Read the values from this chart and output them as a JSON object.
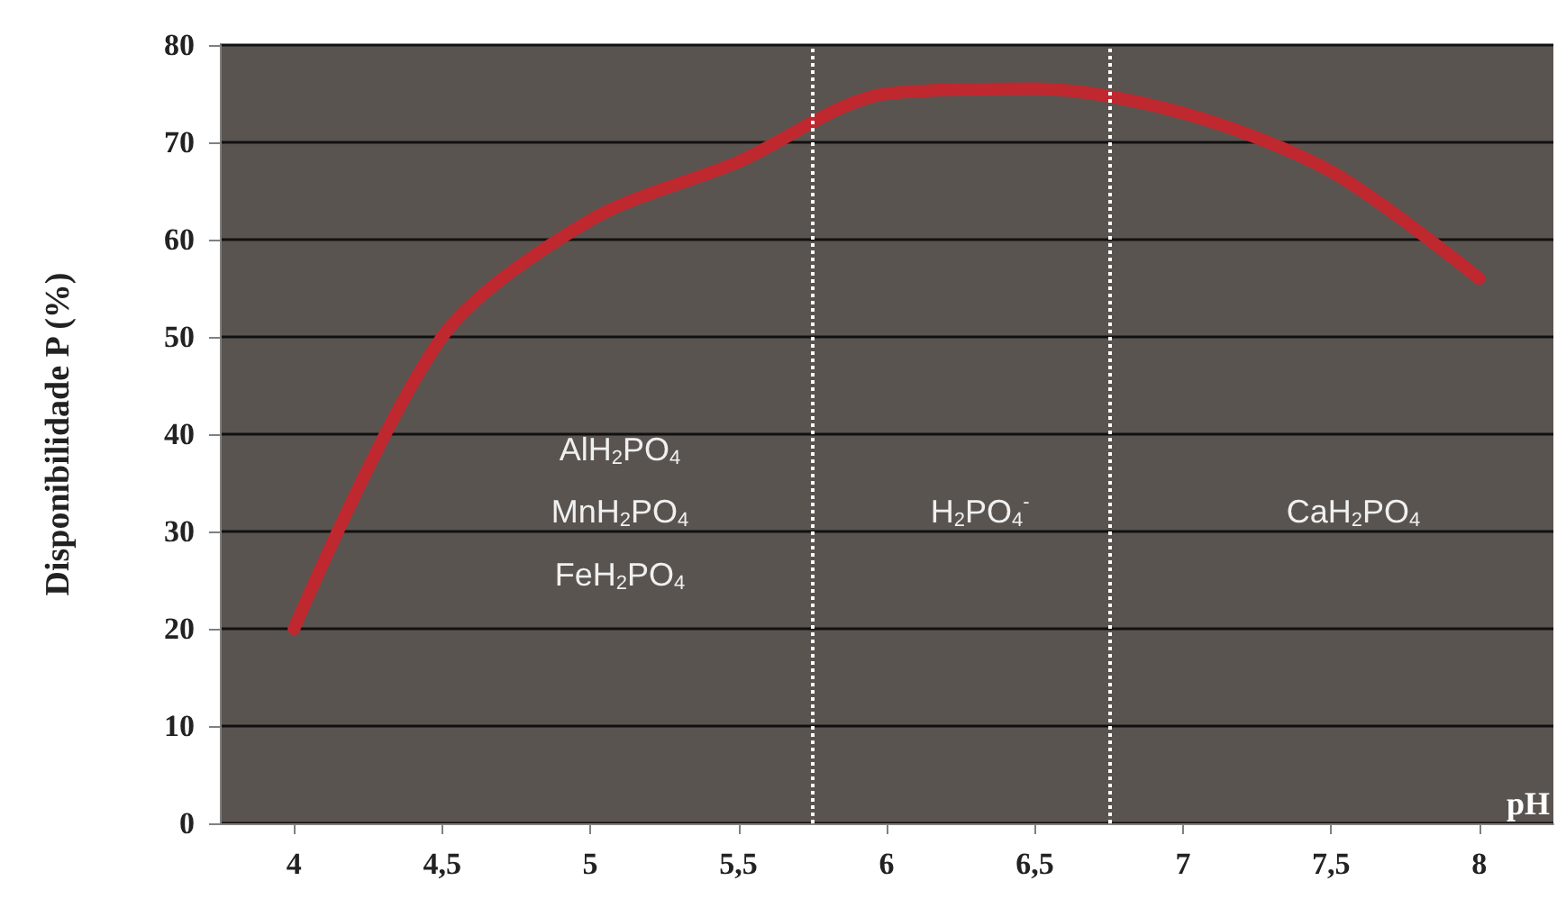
{
  "chart_data": {
    "type": "line",
    "ylabel": "Disponibilidade P (%)",
    "xlabel": "pH",
    "x": [
      4,
      4.5,
      5,
      5.5,
      6,
      6.5,
      7,
      7.5,
      8
    ],
    "series": [
      {
        "color": "#c0282f",
        "values": [
          20,
          50,
          62,
          68,
          75,
          75.5,
          73,
          67,
          56
        ]
      }
    ],
    "xlim": [
      3.75,
      8.25
    ],
    "xticks": [
      4,
      {
        "value": 4.5,
        "label": "4,5"
      },
      5,
      {
        "value": 5.5,
        "label": "5,5"
      },
      6,
      {
        "value": 6.5,
        "label": "6,5"
      },
      7,
      {
        "value": 7.5,
        "label": "7,5"
      },
      8
    ],
    "ylim": [
      0,
      80
    ],
    "yticks": [
      0,
      10,
      20,
      30,
      40,
      50,
      60,
      70,
      80
    ],
    "grid": "y",
    "line_style": "solid",
    "ref_lines": [
      {
        "axis": "x",
        "value": 5.75,
        "color": "#ffffff",
        "line_style": "dotted"
      },
      {
        "axis": "x",
        "value": 6.75,
        "color": "#ffffff",
        "line_style": "dotted"
      }
    ],
    "annotations": [
      "AlH$_{2}$PO$_{4}$",
      "MnH$_{2}$PO$_{4}$",
      "FeH$_{2}$PO$_{4}$",
      "H$_{2}$PO$_{4}$$^{-}$",
      "CaH$_{2}$PO$_{4}$"
    ]
  }
}
